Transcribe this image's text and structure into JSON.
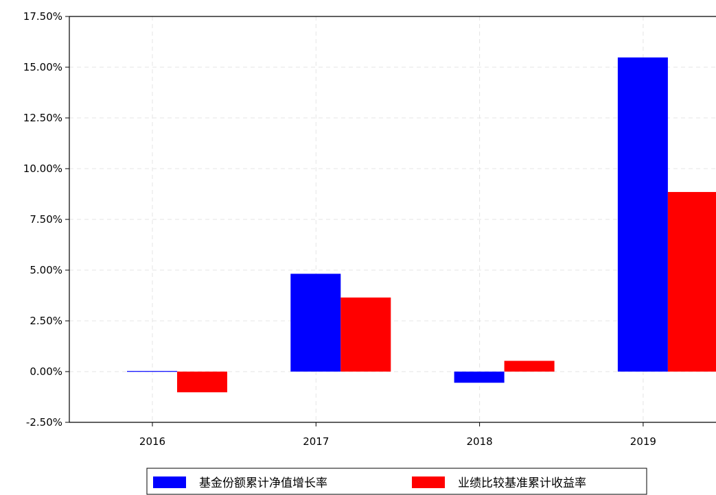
{
  "chart_data": {
    "type": "bar",
    "categories": [
      "2016",
      "2017",
      "2018",
      "2019"
    ],
    "series": [
      {
        "name": "基金份额累计净值增长率",
        "values": [
          0.03,
          4.82,
          -0.55,
          15.48
        ],
        "color": "#0000FF"
      },
      {
        "name": "业绩比较基准累计收益率",
        "values": [
          -1.02,
          3.65,
          0.53,
          8.85
        ],
        "color": "#FF0000"
      }
    ],
    "ylim": [
      -2.5,
      17.5
    ],
    "yticks": [
      "-2.50%",
      "0.00%",
      "2.50%",
      "5.00%",
      "7.50%",
      "10.00%",
      "12.50%",
      "15.00%",
      "17.50%"
    ],
    "grid": true,
    "grid_style": "dashed",
    "legend_position": "bottom-center"
  }
}
